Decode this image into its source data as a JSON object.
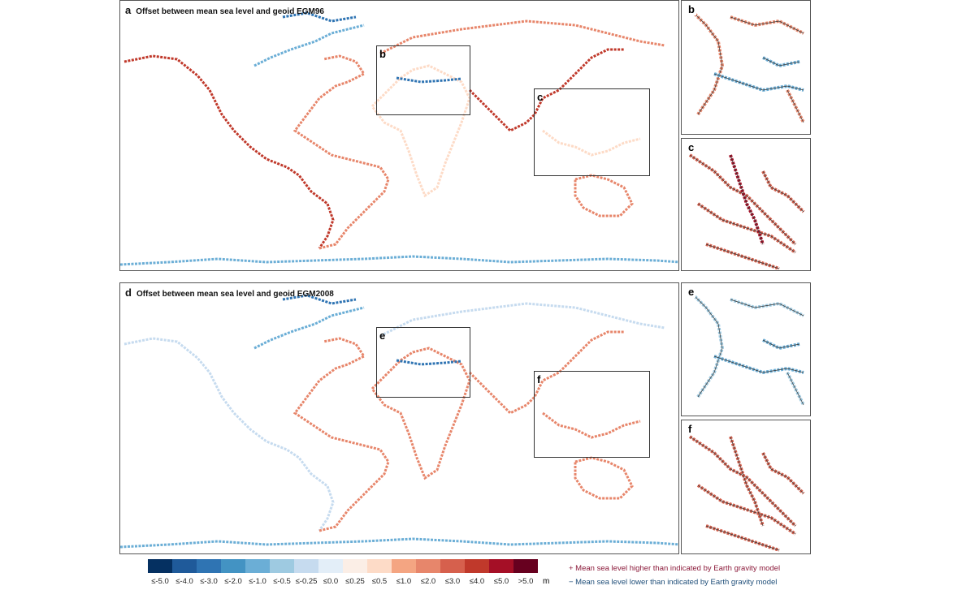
{
  "panels": {
    "a": {
      "letter": "a",
      "title": "Offset between mean sea level and geoid EGM96"
    },
    "b": {
      "letter": "b"
    },
    "c": {
      "letter": "c"
    },
    "d": {
      "letter": "d",
      "title": "Offset between mean sea level and geoid EGM2008"
    },
    "e": {
      "letter": "e"
    },
    "f": {
      "letter": "f"
    }
  },
  "legend": {
    "unit": "m",
    "labels": [
      "≤-5.0",
      "≤-4.0",
      "≤-3.0",
      "≤-2.0",
      "≤-1.0",
      "≤-0.5",
      "≤-0.25",
      "≤0.0",
      "≤0.25",
      "≤0.5",
      "≤1.0",
      "≤2.0",
      "≤3.0",
      "≤4.0",
      "≤5.0",
      ">5.0"
    ],
    "colors": [
      "#053061",
      "#1f5a9a",
      "#2f74b3",
      "#4393c3",
      "#6baed6",
      "#9ecae1",
      "#c6dbef",
      "#e3eef8",
      "#fbeee6",
      "#fddbc7",
      "#f4a582",
      "#e7866b",
      "#d6604d",
      "#c0392b",
      "#a50f26",
      "#67001f"
    ],
    "positive_note": "+ Mean sea level higher than indicated by Earth gravity model",
    "negative_note": "− Mean sea level lower than indicated by Earth gravity model",
    "positive_color": "#8b1a3a",
    "negative_color": "#1f4e79"
  }
}
